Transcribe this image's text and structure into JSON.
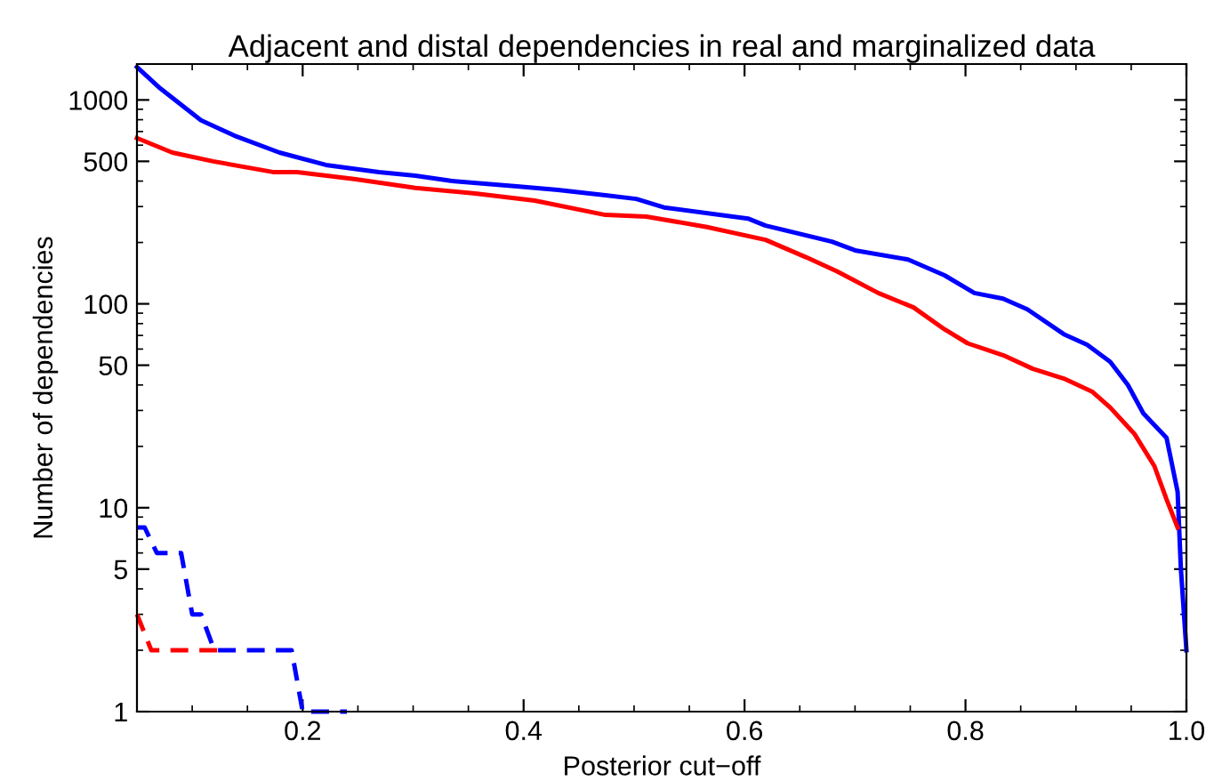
{
  "chart_data": {
    "type": "line",
    "title": "Adjacent and distal dependencies in real and marginalized data",
    "xlabel": "Posterior cut−off",
    "ylabel": "Number of dependencies",
    "log": "y",
    "xlim": [
      0.05,
      1.0
    ],
    "xticks": [
      {
        "value": 0.2,
        "label": "0.2"
      },
      {
        "value": 0.4,
        "label": "0.4"
      },
      {
        "value": 0.6,
        "label": "0.6"
      },
      {
        "value": 0.8,
        "label": "0.8"
      },
      {
        "value": 1.0,
        "label": "1.0"
      }
    ],
    "ylim": [
      1,
      1500
    ],
    "yticks": [
      1,
      5,
      10,
      50,
      100,
      500,
      1000
    ],
    "grid": false,
    "legend": false,
    "marker": "none",
    "series": [
      {
        "color": "#0000ff",
        "line_style": "solid",
        "x": [
          0.05,
          0.071,
          0.108,
          0.14,
          0.179,
          0.221,
          0.269,
          0.302,
          0.334,
          0.394,
          0.431,
          0.474,
          0.502,
          0.527,
          0.603,
          0.619,
          0.679,
          0.7,
          0.748,
          0.781,
          0.808,
          0.834,
          0.856,
          0.889,
          0.91,
          0.931,
          0.947,
          0.961,
          0.982,
          0.992,
          0.995,
          1.0
        ],
        "values": [
          1450,
          1140,
          795,
          662,
          552,
          480,
          443,
          425,
          401,
          377,
          362,
          341,
          327,
          297,
          262,
          242,
          202,
          183,
          165,
          138,
          113,
          106,
          94,
          71,
          63,
          52,
          40,
          29,
          22,
          12,
          5,
          2
        ]
      },
      {
        "color": "#ff0000",
        "line_style": "solid",
        "x": [
          0.05,
          0.082,
          0.119,
          0.173,
          0.195,
          0.248,
          0.302,
          0.356,
          0.41,
          0.474,
          0.511,
          0.566,
          0.619,
          0.656,
          0.684,
          0.721,
          0.753,
          0.781,
          0.802,
          0.834,
          0.861,
          0.889,
          0.915,
          0.931,
          0.953,
          0.971,
          0.982,
          0.992
        ],
        "values": [
          650,
          552,
          500,
          443,
          443,
          408,
          370,
          348,
          321,
          273,
          268,
          238,
          206,
          169,
          144,
          113,
          96,
          75,
          64,
          56,
          48,
          43,
          37,
          31,
          23,
          16,
          11,
          8
        ]
      },
      {
        "color": "#0000ff",
        "line_style": "dashed",
        "x": [
          0.05,
          0.057,
          0.068,
          0.09,
          0.1,
          0.108,
          0.12,
          0.19,
          0.2,
          0.24
        ],
        "values": [
          8,
          8,
          6,
          6,
          3,
          3,
          2,
          2,
          1,
          1
        ]
      },
      {
        "color": "#ff0000",
        "line_style": "dashed",
        "x": [
          0.05,
          0.063,
          0.127
        ],
        "values": [
          3,
          2,
          2
        ]
      }
    ]
  }
}
